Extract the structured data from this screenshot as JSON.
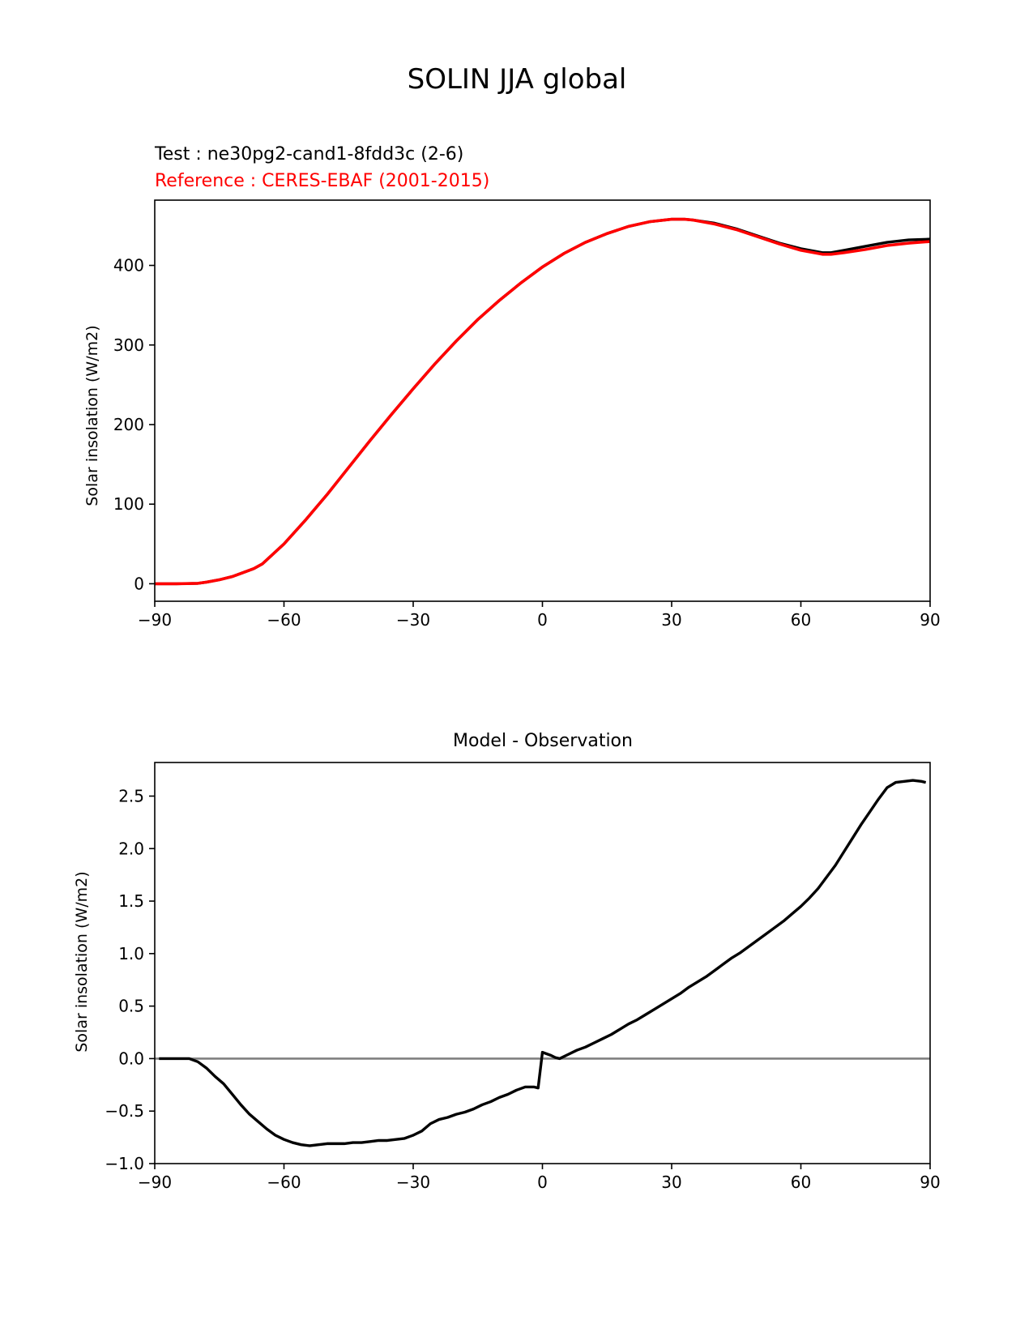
{
  "figure": {
    "title": "SOLIN JJA global"
  },
  "chart_data": [
    {
      "type": "line",
      "test_label": "Test : ne30pg2-cand1-8fdd3c (2-6)",
      "reference_label": "Reference : CERES-EBAF (2001-2015)",
      "ylabel": "Solar insolation (W/m2)",
      "xlabel": "",
      "xlim": [
        -90,
        90
      ],
      "ylim": [
        -22,
        482
      ],
      "xticks": [
        -90,
        -60,
        -30,
        0,
        30,
        60,
        90
      ],
      "xtick_labels": [
        "−90",
        "−60",
        "−30",
        "0",
        "30",
        "60",
        "90"
      ],
      "yticks": [
        0,
        100,
        200,
        300,
        400
      ],
      "ytick_labels": [
        "0",
        "100",
        "200",
        "300",
        "400"
      ],
      "grid": false,
      "colors": {
        "test": "#000000",
        "reference": "#ff0000"
      },
      "series": [
        {
          "role": "test",
          "x": [
            -90,
            -85,
            -80,
            -78,
            -75,
            -72,
            -70,
            -67,
            -65,
            -60,
            -55,
            -50,
            -45,
            -40,
            -35,
            -30,
            -25,
            -20,
            -15,
            -10,
            -5,
            0,
            5,
            10,
            15,
            20,
            25,
            30,
            33,
            35,
            40,
            45,
            50,
            55,
            60,
            65,
            67,
            70,
            75,
            80,
            85,
            90
          ],
          "y": [
            0,
            0,
            0.5,
            2,
            5,
            9,
            13,
            19,
            25,
            50,
            80,
            112,
            146,
            180,
            213,
            245,
            276,
            305,
            332,
            356,
            378,
            398,
            415,
            429,
            440,
            449,
            455,
            458,
            458,
            457,
            453,
            446,
            437,
            428,
            421,
            416,
            416,
            419,
            424,
            429,
            432,
            433
          ]
        },
        {
          "role": "reference",
          "x": [
            -90,
            -85,
            -80,
            -78,
            -75,
            -72,
            -70,
            -67,
            -65,
            -60,
            -55,
            -50,
            -45,
            -40,
            -35,
            -30,
            -25,
            -20,
            -15,
            -10,
            -5,
            0,
            5,
            10,
            15,
            20,
            25,
            30,
            33,
            35,
            40,
            45,
            50,
            55,
            60,
            65,
            67,
            70,
            75,
            80,
            85,
            90
          ],
          "y": [
            0,
            0,
            0.5,
            2,
            5,
            9,
            13,
            19,
            25,
            50,
            80,
            112,
            146,
            180,
            213,
            245,
            276,
            305,
            332,
            356,
            378,
            398,
            415,
            429,
            440,
            449,
            455,
            458,
            458,
            457,
            452,
            445,
            436,
            427,
            419,
            414,
            414,
            416,
            420,
            425,
            428,
            430
          ]
        }
      ]
    },
    {
      "type": "line",
      "title": "Model - Observation",
      "ylabel": "Solar insolation (W/m2)",
      "xlabel": "",
      "xlim": [
        -90,
        90
      ],
      "ylim": [
        -1.0,
        2.82
      ],
      "xticks": [
        -90,
        -60,
        -30,
        0,
        30,
        60,
        90
      ],
      "xtick_labels": [
        "−90",
        "−60",
        "−30",
        "0",
        "30",
        "60",
        "90"
      ],
      "yticks": [
        -1.0,
        -0.5,
        0.0,
        0.5,
        1.0,
        1.5,
        2.0,
        2.5
      ],
      "ytick_labels": [
        "−1.0",
        "−0.5",
        "0.0",
        "0.5",
        "1.0",
        "1.5",
        "2.0",
        "2.5"
      ],
      "grid": false,
      "zero_line": 0.0,
      "colors": {
        "difference": "#000000",
        "zero_line": "#808080"
      },
      "series": [
        {
          "role": "difference",
          "x": [
            -89,
            -86,
            -82,
            -80,
            -78,
            -76,
            -74,
            -72,
            -70,
            -68,
            -66,
            -64,
            -62,
            -60,
            -58,
            -56,
            -54,
            -52,
            -50,
            -48,
            -46,
            -44,
            -42,
            -40,
            -38,
            -36,
            -34,
            -32,
            -30,
            -28,
            -26,
            -24,
            -22,
            -20,
            -18,
            -16,
            -14,
            -12,
            -10,
            -8,
            -6,
            -4,
            -2,
            -1,
            0,
            2,
            3,
            4,
            6,
            8,
            10,
            12,
            14,
            16,
            18,
            20,
            22,
            24,
            26,
            28,
            30,
            32,
            34,
            36,
            38,
            40,
            42,
            44,
            46,
            48,
            50,
            52,
            54,
            56,
            58,
            60,
            62,
            64,
            66,
            68,
            70,
            72,
            74,
            76,
            78,
            80,
            82,
            84,
            86,
            88,
            89
          ],
          "y": [
            0,
            0,
            0,
            -0.03,
            -0.09,
            -0.17,
            -0.24,
            -0.34,
            -0.44,
            -0.53,
            -0.6,
            -0.67,
            -0.73,
            -0.77,
            -0.8,
            -0.82,
            -0.83,
            -0.82,
            -0.81,
            -0.81,
            -0.81,
            -0.8,
            -0.8,
            -0.79,
            -0.78,
            -0.78,
            -0.77,
            -0.76,
            -0.73,
            -0.69,
            -0.62,
            -0.58,
            -0.56,
            -0.53,
            -0.51,
            -0.48,
            -0.44,
            -0.41,
            -0.37,
            -0.34,
            -0.3,
            -0.27,
            -0.27,
            -0.28,
            0.06,
            0.03,
            0.01,
            0.0,
            0.04,
            0.08,
            0.11,
            0.15,
            0.19,
            0.23,
            0.28,
            0.33,
            0.37,
            0.42,
            0.47,
            0.52,
            0.57,
            0.62,
            0.68,
            0.73,
            0.78,
            0.84,
            0.9,
            0.96,
            1.01,
            1.07,
            1.13,
            1.19,
            1.25,
            1.31,
            1.38,
            1.45,
            1.53,
            1.62,
            1.73,
            1.84,
            1.97,
            2.1,
            2.23,
            2.35,
            2.47,
            2.58,
            2.63,
            2.64,
            2.65,
            2.64,
            2.63
          ]
        }
      ]
    }
  ]
}
